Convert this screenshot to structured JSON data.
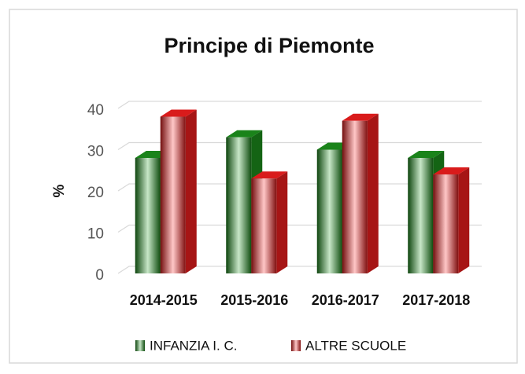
{
  "chart_data": {
    "type": "bar",
    "title": "Principe di Piemonte",
    "y_label": "%",
    "categories": [
      "2014-2015",
      "2015-2016",
      "2016-2017",
      "2017-2018"
    ],
    "series": [
      {
        "name": "INFANZIA I. C.",
        "color": "#1e9a1e",
        "values": [
          28,
          33,
          30,
          28
        ]
      },
      {
        "name": "ALTRE SCUOLE",
        "color": "#ff2020",
        "values": [
          38,
          23,
          37,
          24
        ]
      }
    ],
    "ylim": [
      0,
      40
    ],
    "yticks": [
      0,
      10,
      20,
      30,
      40
    ],
    "grid": true,
    "legend": "bottom"
  }
}
